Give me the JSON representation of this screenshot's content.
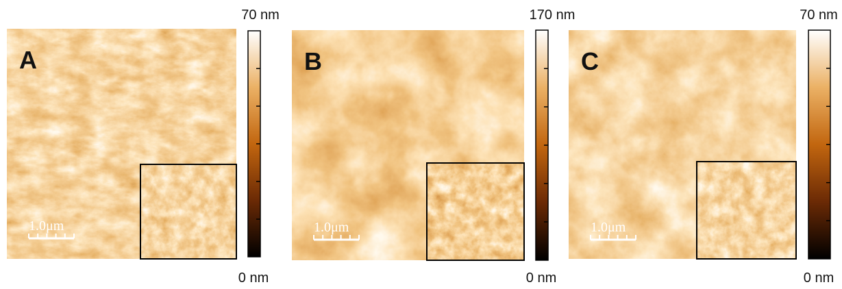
{
  "panels": [
    {
      "label": "A",
      "max_label": "70 nm",
      "min_label": "0 nm",
      "scale_bar": "1.0μm"
    },
    {
      "label": "B",
      "max_label": "170 nm",
      "min_label": "0 nm",
      "scale_bar": "1.0μm"
    },
    {
      "label": "C",
      "max_label": "70 nm",
      "min_label": "0 nm",
      "scale_bar": "1.0μm"
    }
  ]
}
